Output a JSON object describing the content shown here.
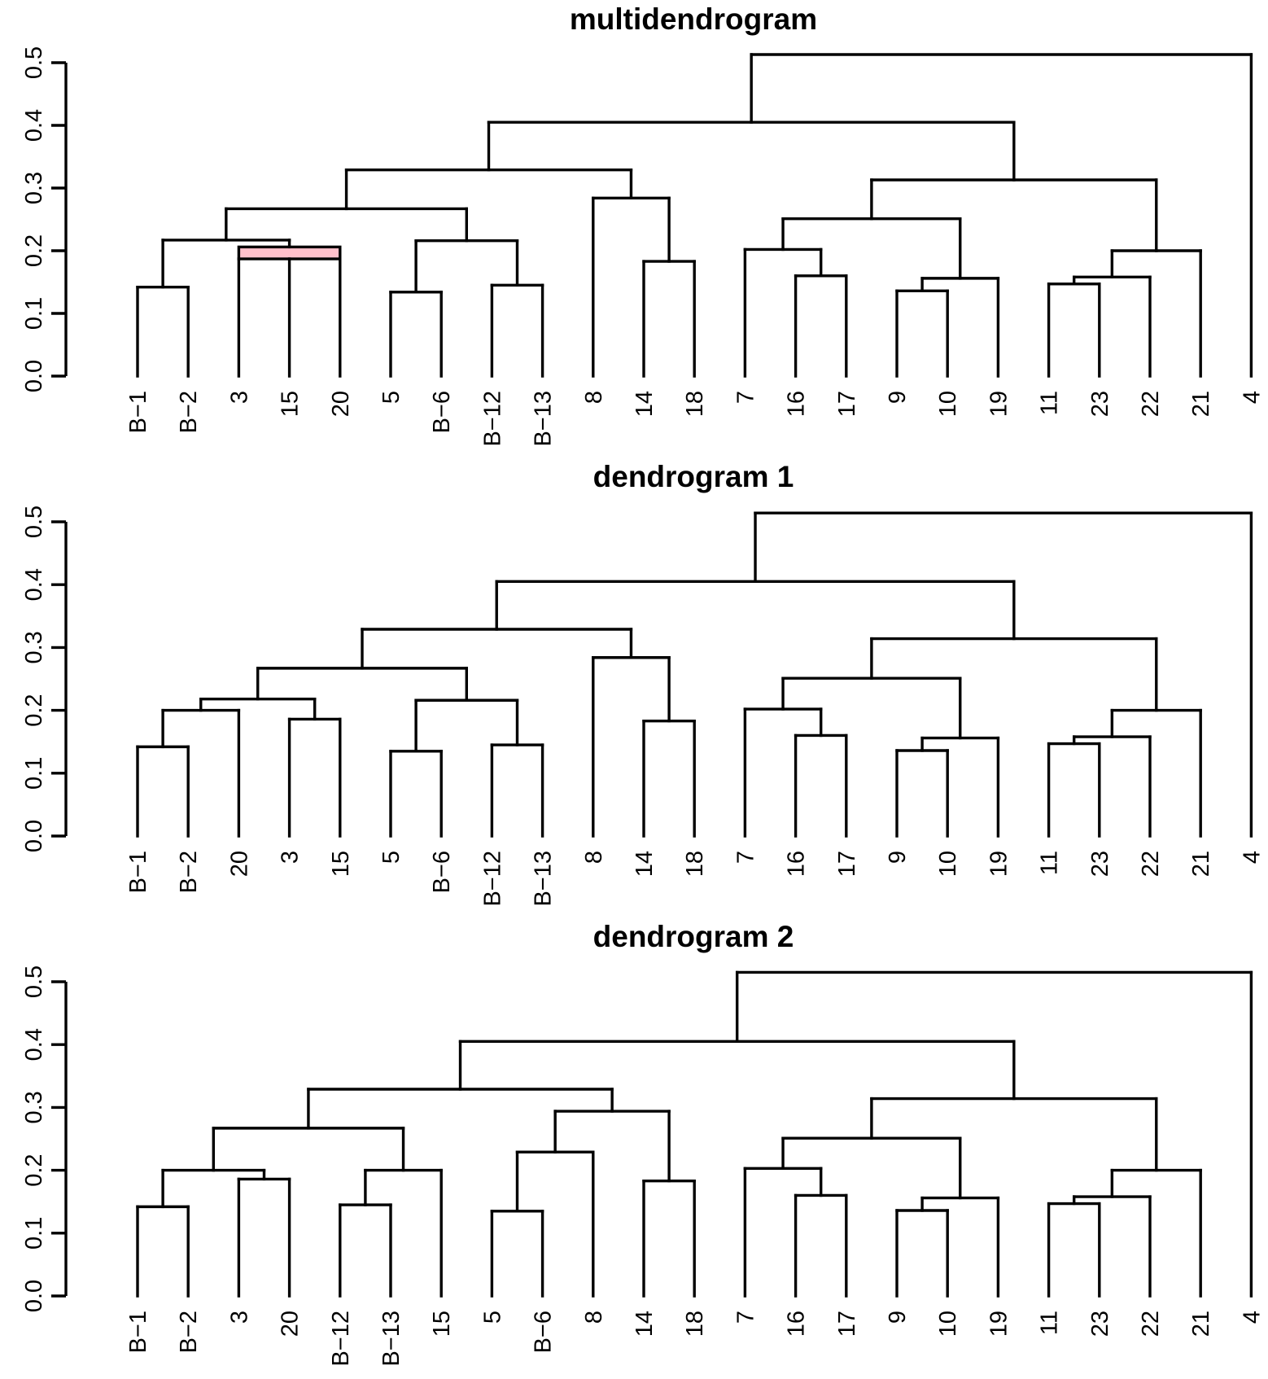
{
  "chart_data": [
    {
      "type": "dendrogram",
      "title": "multidendrogram",
      "ylim": [
        0,
        0.5
      ],
      "yticks": [
        "0.0",
        "0.1",
        "0.2",
        "0.3",
        "0.4",
        "0.5"
      ],
      "leaves": [
        "B−1",
        "B−2",
        "3",
        "15",
        "20",
        "5",
        "B−6",
        "B−12",
        "B−13",
        "8",
        "14",
        "18",
        "7",
        "16",
        "17",
        "9",
        "10",
        "19",
        "11",
        "23",
        "22",
        "21",
        "4"
      ],
      "merges": [
        {
          "children": [
            "L0",
            "L1"
          ],
          "height": 0.142
        },
        {
          "children": [
            "L2",
            "L3",
            "L4"
          ],
          "height_low": 0.187,
          "height_high": 0.206,
          "band_color": "#ffc0cb"
        },
        {
          "children": [
            "N0",
            "N1"
          ],
          "height": 0.217
        },
        {
          "children": [
            "L5",
            "L6"
          ],
          "height": 0.134
        },
        {
          "children": [
            "L7",
            "L8"
          ],
          "height": 0.145
        },
        {
          "children": [
            "N3",
            "N4"
          ],
          "height": 0.216
        },
        {
          "children": [
            "N2",
            "N5"
          ],
          "height": 0.267
        },
        {
          "children": [
            "L10",
            "L11"
          ],
          "height": 0.183
        },
        {
          "children": [
            "L9",
            "N7"
          ],
          "height": 0.284
        },
        {
          "children": [
            "N6",
            "N8"
          ],
          "height": 0.329
        },
        {
          "children": [
            "L13",
            "L14"
          ],
          "height": 0.16
        },
        {
          "children": [
            "L12",
            "N10"
          ],
          "height": 0.202
        },
        {
          "children": [
            "L15",
            "L16"
          ],
          "height": 0.136
        },
        {
          "children": [
            "N12",
            "L17"
          ],
          "height": 0.156
        },
        {
          "children": [
            "N11",
            "N13"
          ],
          "height": 0.251
        },
        {
          "children": [
            "L18",
            "L19"
          ],
          "height": 0.147
        },
        {
          "children": [
            "N15",
            "L20"
          ],
          "height": 0.158
        },
        {
          "children": [
            "N16",
            "L21"
          ],
          "height": 0.2
        },
        {
          "children": [
            "N14",
            "N17"
          ],
          "height": 0.313
        },
        {
          "children": [
            "N9",
            "N18"
          ],
          "height": 0.405
        },
        {
          "children": [
            "N19",
            "L22"
          ],
          "height": 0.513
        }
      ]
    },
    {
      "type": "dendrogram",
      "title": "dendrogram 1",
      "ylim": [
        0,
        0.5
      ],
      "yticks": [
        "0.0",
        "0.1",
        "0.2",
        "0.3",
        "0.4",
        "0.5"
      ],
      "leaves": [
        "B−1",
        "B−2",
        "20",
        "3",
        "15",
        "5",
        "B−6",
        "B−12",
        "B−13",
        "8",
        "14",
        "18",
        "7",
        "16",
        "17",
        "9",
        "10",
        "19",
        "11",
        "23",
        "22",
        "21",
        "4"
      ],
      "merges": [
        {
          "children": [
            "L0",
            "L1"
          ],
          "height": 0.142
        },
        {
          "children": [
            "N0",
            "L2"
          ],
          "height": 0.2
        },
        {
          "children": [
            "L3",
            "L4"
          ],
          "height": 0.186
        },
        {
          "children": [
            "N1",
            "N2"
          ],
          "height": 0.218
        },
        {
          "children": [
            "L5",
            "L6"
          ],
          "height": 0.135
        },
        {
          "children": [
            "L7",
            "L8"
          ],
          "height": 0.145
        },
        {
          "children": [
            "N4",
            "N5"
          ],
          "height": 0.216
        },
        {
          "children": [
            "N3",
            "N6"
          ],
          "height": 0.267
        },
        {
          "children": [
            "L10",
            "L11"
          ],
          "height": 0.183
        },
        {
          "children": [
            "L9",
            "N8"
          ],
          "height": 0.284
        },
        {
          "children": [
            "N7",
            "N9"
          ],
          "height": 0.329
        },
        {
          "children": [
            "L13",
            "L14"
          ],
          "height": 0.16
        },
        {
          "children": [
            "L12",
            "N11"
          ],
          "height": 0.202
        },
        {
          "children": [
            "L15",
            "L16"
          ],
          "height": 0.136
        },
        {
          "children": [
            "N13",
            "L17"
          ],
          "height": 0.156
        },
        {
          "children": [
            "N12",
            "N14"
          ],
          "height": 0.251
        },
        {
          "children": [
            "L18",
            "L19"
          ],
          "height": 0.147
        },
        {
          "children": [
            "N16",
            "L20"
          ],
          "height": 0.158
        },
        {
          "children": [
            "N17",
            "L21"
          ],
          "height": 0.2
        },
        {
          "children": [
            "N15",
            "N18"
          ],
          "height": 0.314
        },
        {
          "children": [
            "N10",
            "N19"
          ],
          "height": 0.405
        },
        {
          "children": [
            "N20",
            "L22"
          ],
          "height": 0.514
        }
      ]
    },
    {
      "type": "dendrogram",
      "title": "dendrogram 2",
      "ylim": [
        0,
        0.5
      ],
      "yticks": [
        "0.0",
        "0.1",
        "0.2",
        "0.3",
        "0.4",
        "0.5"
      ],
      "leaves": [
        "B−1",
        "B−2",
        "3",
        "20",
        "B−12",
        "B−13",
        "15",
        "5",
        "B−6",
        "8",
        "14",
        "18",
        "7",
        "16",
        "17",
        "9",
        "10",
        "19",
        "11",
        "23",
        "22",
        "21",
        "4"
      ],
      "merges": [
        {
          "children": [
            "L0",
            "L1"
          ],
          "height": 0.142
        },
        {
          "children": [
            "L2",
            "L3"
          ],
          "height": 0.186
        },
        {
          "children": [
            "N0",
            "N1"
          ],
          "height": 0.2
        },
        {
          "children": [
            "L4",
            "L5"
          ],
          "height": 0.145
        },
        {
          "children": [
            "N3",
            "L6"
          ],
          "height": 0.2
        },
        {
          "children": [
            "N2",
            "N4"
          ],
          "height": 0.267
        },
        {
          "children": [
            "L7",
            "L8"
          ],
          "height": 0.135
        },
        {
          "children": [
            "N6",
            "L9"
          ],
          "height": 0.229
        },
        {
          "children": [
            "L10",
            "L11"
          ],
          "height": 0.183
        },
        {
          "children": [
            "N7",
            "N8"
          ],
          "height": 0.294
        },
        {
          "children": [
            "N5",
            "N9"
          ],
          "height": 0.329
        },
        {
          "children": [
            "L13",
            "L14"
          ],
          "height": 0.16
        },
        {
          "children": [
            "L12",
            "N11"
          ],
          "height": 0.203
        },
        {
          "children": [
            "L15",
            "L16"
          ],
          "height": 0.136
        },
        {
          "children": [
            "N13",
            "L17"
          ],
          "height": 0.156
        },
        {
          "children": [
            "N12",
            "N14"
          ],
          "height": 0.251
        },
        {
          "children": [
            "L18",
            "L19"
          ],
          "height": 0.147
        },
        {
          "children": [
            "N16",
            "L20"
          ],
          "height": 0.158
        },
        {
          "children": [
            "N17",
            "L21"
          ],
          "height": 0.2
        },
        {
          "children": [
            "N15",
            "N18"
          ],
          "height": 0.314
        },
        {
          "children": [
            "N10",
            "N19"
          ],
          "height": 0.405
        },
        {
          "children": [
            "N20",
            "L22"
          ],
          "height": 0.515
        }
      ]
    }
  ]
}
